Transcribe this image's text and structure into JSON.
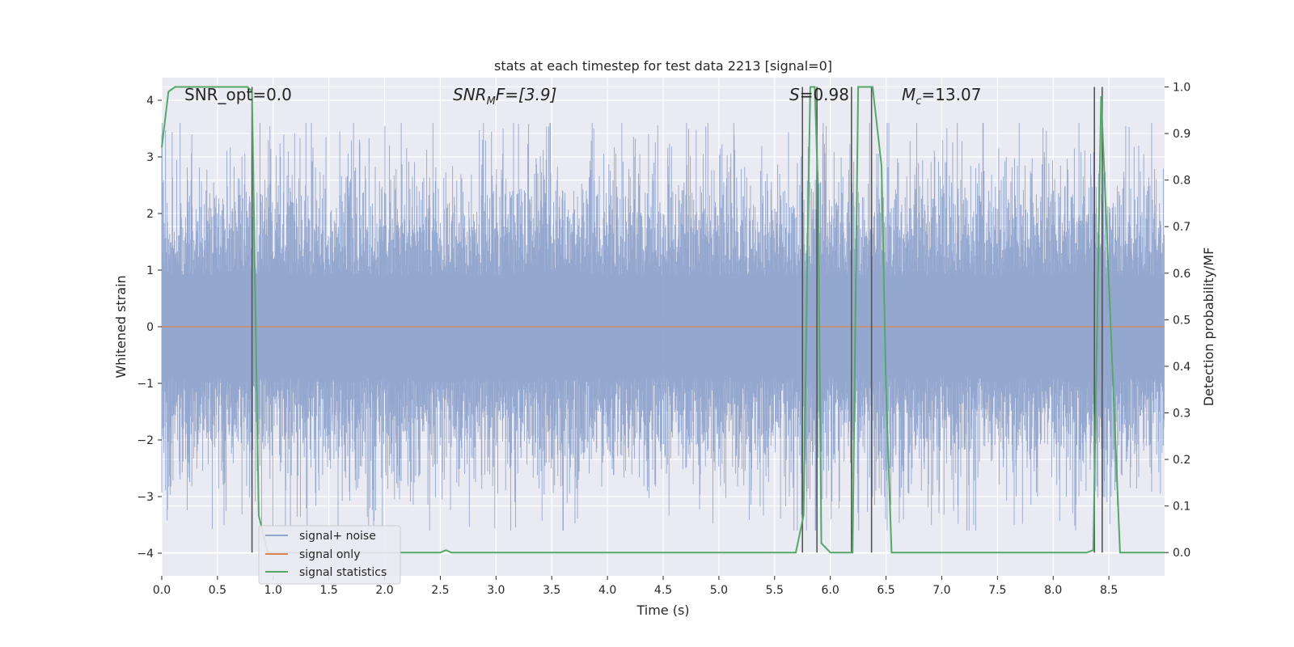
{
  "chart_data": {
    "type": "line",
    "title": "stats at each timestep for test data 2213 [signal=0]",
    "xlabel": "Time (s)",
    "ylabel": "Whitened strain",
    "ylabel_right": "Detection probability/MF",
    "xlim": [
      0.0,
      9.0
    ],
    "ylim": [
      -4.4,
      4.4
    ],
    "ylim_right": [
      -0.05,
      1.02
    ],
    "x_ticks": [
      "0.0",
      "0.5",
      "1.0",
      "1.5",
      "2.0",
      "2.5",
      "3.0",
      "3.5",
      "4.0",
      "4.5",
      "5.0",
      "5.5",
      "6.0",
      "6.5",
      "7.0",
      "7.5",
      "8.0",
      "8.5"
    ],
    "y_ticks_left": [
      "4",
      "3",
      "2",
      "1",
      "0",
      "−1",
      "−2",
      "−3",
      "−4"
    ],
    "y_ticks_right": [
      "1.0",
      "0.9",
      "0.8",
      "0.7",
      "0.6",
      "0.5",
      "0.4",
      "0.3",
      "0.2",
      "0.1",
      "0.0"
    ],
    "annotations": {
      "snr_opt": "SNR_opt=0.0",
      "snr_mf_sym": "SNR",
      "snr_mf_sub": "M",
      "snr_mf_rest": "F=[3.9]",
      "s_sym": "S",
      "s_rest": "=0.98",
      "mc_sym": "M",
      "mc_sub": "c",
      "mc_rest": "=13.07"
    },
    "legend": {
      "placement": "lower-left",
      "entries": [
        "signal+ noise",
        "signal only",
        "signal statistics"
      ]
    },
    "colors": {
      "noise": "#8fa3cc",
      "signal_only": "#dd8452",
      "statistics": "#55a868",
      "vlines": "#555555",
      "background": "#eaeaf2",
      "grid": "#ffffff"
    },
    "series": [
      {
        "name": "signal+ noise",
        "description_values": "dense whitened strain noise, approx range -3.6 to 3.6"
      },
      {
        "name": "signal only",
        "x": [
          0.0,
          9.0
        ],
        "values": [
          0.0,
          0.0
        ]
      },
      {
        "name": "signal statistics",
        "x": [
          0.0,
          0.06,
          0.12,
          0.2,
          0.3,
          0.4,
          0.5,
          0.6,
          0.7,
          0.77,
          0.81,
          0.87,
          0.95,
          1.1,
          1.5,
          2.0,
          2.5,
          2.55,
          2.6,
          2.7,
          3.0,
          3.5,
          4.0,
          4.5,
          5.0,
          5.5,
          5.69,
          5.76,
          5.8,
          5.82,
          5.86,
          5.89,
          5.92,
          6.0,
          6.2,
          6.25,
          6.38,
          6.46,
          6.5,
          6.55,
          7.0,
          7.5,
          8.0,
          8.3,
          8.36,
          8.43,
          8.5,
          8.6,
          9.0
        ],
        "values": [
          0.87,
          0.99,
          1.0,
          1.0,
          1.0,
          1.0,
          1.0,
          1.0,
          1.0,
          1.0,
          0.99,
          0.08,
          0.0,
          0.0,
          0.0,
          0.0,
          0.0,
          0.005,
          0.0,
          0.0,
          0.0,
          0.0,
          0.0,
          0.0,
          0.0,
          0.0,
          0.0,
          0.08,
          0.72,
          1.0,
          1.0,
          0.78,
          0.02,
          0.0,
          0.0,
          1.0,
          1.0,
          0.83,
          0.35,
          0.0,
          0.0,
          0.0,
          0.0,
          0.0,
          0.005,
          0.98,
          0.58,
          0.0,
          0.0
        ]
      }
    ],
    "vertical_lines_x": [
      0.81,
      5.75,
      5.88,
      6.19,
      6.37,
      8.37,
      8.44
    ]
  }
}
